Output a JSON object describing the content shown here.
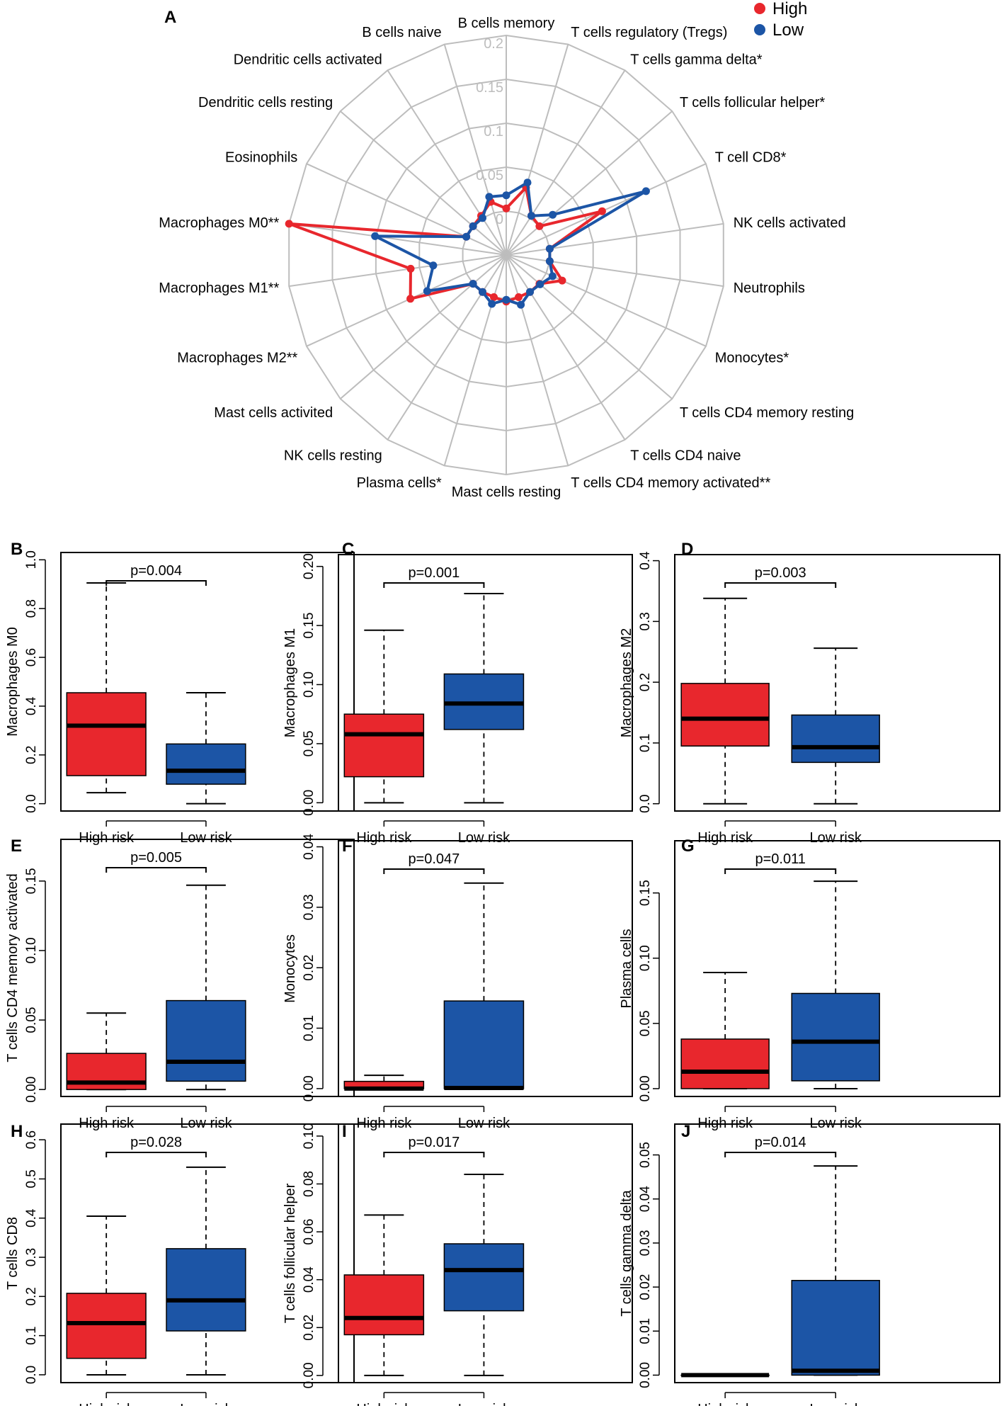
{
  "colors": {
    "high": "#e8272d",
    "low": "#1c55a6",
    "grid": "#bdbdbd"
  },
  "chart_data": [
    {
      "id": "A",
      "type": "radar",
      "legend": [
        {
          "name": "High",
          "color_key": "high"
        },
        {
          "name": "Low",
          "color_key": "low"
        }
      ],
      "legend_position": "top-right",
      "radial_ticks": [
        "0",
        "0.05",
        "0.1",
        "0.15",
        "0.2"
      ],
      "rlim": [
        -0.05,
        0.2
      ],
      "categories": [
        "B cells memory",
        "T cells regulatory (Tregs)",
        "T cells gamma delta*",
        "T cells follicular helper*",
        "T cell CD8*",
        "NK cells activated",
        "Neutrophils",
        "Monocytes*",
        "T cells CD4 memory resting",
        "T cells CD4 naive",
        "T cells CD4 memory activated**",
        "Mast cells resting",
        "Plasma cells*",
        "NK cells resting",
        "Mast cells activited",
        "Macrophages M2**",
        "Macrophages M1**",
        "Macrophages M0**",
        "Eosinophils",
        "Dendritic cells resting",
        "Dendritic cells activated",
        "B cells naive"
      ],
      "series": [
        {
          "name": "High",
          "values": [
            0.003,
            0.03,
            0.003,
            0.0,
            0.07,
            0.0,
            0.0,
            0.02,
            0.0,
            0.0,
            0.0,
            0.003,
            0.0,
            0.0,
            0.0,
            0.07,
            0.06,
            0.2,
            0.0,
            0.0,
            0.003,
            0.013
          ]
        },
        {
          "name": "Low",
          "values": [
            0.018,
            0.036,
            0.003,
            0.02,
            0.125,
            0.0,
            0.0,
            0.008,
            0.001,
            0.0,
            0.009,
            0.001,
            0.008,
            0.0,
            0.0,
            0.049,
            0.034,
            0.101,
            0.0,
            0.0,
            0.0,
            0.019
          ]
        }
      ]
    },
    {
      "id": "B",
      "type": "boxplot",
      "ylabel": "Macrophages M0",
      "ylim": [
        -0.03,
        1.03
      ],
      "yticks": [
        "0.0",
        "0.2",
        "0.4",
        "0.6",
        "0.8",
        "1.0"
      ],
      "pvalue": "p=0.004",
      "categories": [
        "High risk",
        "Low risk"
      ],
      "boxes": [
        {
          "name": "High risk",
          "whisker_low": 0.045,
          "q1": 0.115,
          "median": 0.32,
          "q3": 0.455,
          "whisker_high": 0.905
        },
        {
          "name": "Low risk",
          "whisker_low": 0.0,
          "q1": 0.08,
          "median": 0.135,
          "q3": 0.245,
          "whisker_high": 0.455
        }
      ]
    },
    {
      "id": "C",
      "type": "boxplot",
      "ylabel": "Macrophages M1",
      "ylim": [
        -0.007,
        0.21
      ],
      "yticks": [
        "0.00",
        "0.05",
        "0.10",
        "0.15",
        "0.20"
      ],
      "pvalue": "p=0.001",
      "categories": [
        "High risk",
        "Low risk"
      ],
      "boxes": [
        {
          "name": "High risk",
          "whisker_low": 0.0,
          "q1": 0.022,
          "median": 0.058,
          "q3": 0.075,
          "whisker_high": 0.146
        },
        {
          "name": "Low risk",
          "whisker_low": 0.0,
          "q1": 0.062,
          "median": 0.084,
          "q3": 0.109,
          "whisker_high": 0.177
        }
      ]
    },
    {
      "id": "D",
      "type": "boxplot",
      "ylabel": "Macrophages M2",
      "ylim": [
        -0.012,
        0.41
      ],
      "yticks": [
        "0.0",
        "0.1",
        "0.2",
        "0.3",
        "0.4"
      ],
      "pvalue": "p=0.003",
      "categories": [
        "High risk",
        "Low risk"
      ],
      "boxes": [
        {
          "name": "High risk",
          "whisker_low": 0.0,
          "q1": 0.095,
          "median": 0.14,
          "q3": 0.198,
          "whisker_high": 0.338
        },
        {
          "name": "Low risk",
          "whisker_low": 0.0,
          "q1": 0.068,
          "median": 0.093,
          "q3": 0.146,
          "whisker_high": 0.256
        }
      ]
    },
    {
      "id": "E",
      "type": "boxplot",
      "ylabel": "T cells CD4 memory activated",
      "ylim": [
        -0.005,
        0.18
      ],
      "yticks": [
        "0.00",
        "0.05",
        "0.10",
        "0.15"
      ],
      "pvalue": "p=0.005",
      "categories": [
        "High risk",
        "Low risk"
      ],
      "boxes": [
        {
          "name": "High risk",
          "whisker_low": 0.0,
          "q1": 0.0,
          "median": 0.005,
          "q3": 0.026,
          "whisker_high": 0.055
        },
        {
          "name": "Low risk",
          "whisker_low": 0.0,
          "q1": 0.006,
          "median": 0.02,
          "q3": 0.064,
          "whisker_high": 0.147
        }
      ]
    },
    {
      "id": "F",
      "type": "boxplot",
      "ylabel": "Monocytes",
      "ylim": [
        -0.0013,
        0.041
      ],
      "yticks": [
        "0.00",
        "0.01",
        "0.02",
        "0.03",
        "0.04"
      ],
      "pvalue": "p=0.047",
      "categories": [
        "High risk",
        "Low risk"
      ],
      "boxes": [
        {
          "name": "High risk",
          "whisker_low": 0.0,
          "q1": 0.0,
          "median": 0.0,
          "q3": 0.0012,
          "whisker_high": 0.0022
        },
        {
          "name": "Low risk",
          "whisker_low": 0.0,
          "q1": 0.0,
          "median": 0.0001,
          "q3": 0.0145,
          "whisker_high": 0.034
        }
      ]
    },
    {
      "id": "G",
      "type": "boxplot",
      "ylabel": "Plasma cells",
      "ylim": [
        -0.006,
        0.19
      ],
      "yticks": [
        "0.00",
        "0.05",
        "0.10",
        "0.15"
      ],
      "pvalue": "p=0.011",
      "categories": [
        "High risk",
        "Low risk"
      ],
      "boxes": [
        {
          "name": "High risk",
          "whisker_low": 0.0,
          "q1": 0.0,
          "median": 0.013,
          "q3": 0.038,
          "whisker_high": 0.089
        },
        {
          "name": "Low risk",
          "whisker_low": 0.0,
          "q1": 0.006,
          "median": 0.036,
          "q3": 0.073,
          "whisker_high": 0.159
        }
      ]
    },
    {
      "id": "H",
      "type": "boxplot",
      "ylabel": "T cells CD8",
      "ylim": [
        -0.02,
        0.64
      ],
      "yticks": [
        "0.0",
        "0.1",
        "0.2",
        "0.3",
        "0.4",
        "0.5",
        "0.6"
      ],
      "pvalue": "p=0.028",
      "categories": [
        "High risk",
        "Low risk"
      ],
      "boxes": [
        {
          "name": "High risk",
          "whisker_low": 0.0,
          "q1": 0.042,
          "median": 0.132,
          "q3": 0.208,
          "whisker_high": 0.405
        },
        {
          "name": "Low risk",
          "whisker_low": 0.0,
          "q1": 0.112,
          "median": 0.19,
          "q3": 0.322,
          "whisker_high": 0.53
        }
      ]
    },
    {
      "id": "I",
      "type": "boxplot",
      "ylabel": "T cells follicular helper",
      "ylim": [
        -0.003,
        0.105
      ],
      "yticks": [
        "0.00",
        "0.02",
        "0.04",
        "0.06",
        "0.08",
        "0.10"
      ],
      "pvalue": "p=0.017",
      "categories": [
        "High risk",
        "Low risk"
      ],
      "boxes": [
        {
          "name": "High risk",
          "whisker_low": 0.0,
          "q1": 0.017,
          "median": 0.024,
          "q3": 0.042,
          "whisker_high": 0.067
        },
        {
          "name": "Low risk",
          "whisker_low": 0.0,
          "q1": 0.027,
          "median": 0.044,
          "q3": 0.055,
          "whisker_high": 0.084
        }
      ]
    },
    {
      "id": "J",
      "type": "boxplot",
      "ylabel": "T cells gamma delta",
      "ylim": [
        -0.0017,
        0.057
      ],
      "yticks": [
        "0.00",
        "0.01",
        "0.02",
        "0.03",
        "0.04",
        "0.05"
      ],
      "pvalue": "p=0.014",
      "categories": [
        "High risk",
        "Low risk"
      ],
      "boxes": [
        {
          "name": "High risk",
          "whisker_low": 0.0,
          "q1": 0.0,
          "median": 0.0,
          "q3": 0.0,
          "whisker_high": 0.0
        },
        {
          "name": "Low risk",
          "whisker_low": 0.0,
          "q1": 0.0,
          "median": 0.001,
          "q3": 0.0215,
          "whisker_high": 0.0475
        }
      ]
    }
  ]
}
